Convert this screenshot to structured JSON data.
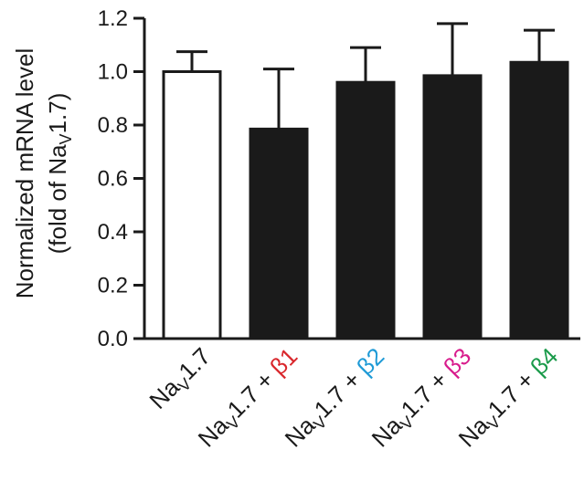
{
  "chart_data": {
    "type": "bar",
    "ylabel_line1": "Normalized mRNA level",
    "ylabel_line2": {
      "pre": "(fold of Na",
      "sub": "V",
      "post": "1.7)"
    },
    "ylim": [
      0,
      1.2
    ],
    "yticks": [
      "0.0",
      "0.2",
      "0.4",
      "0.6",
      "0.8",
      "1.0",
      "1.2"
    ],
    "grid": false,
    "legend": "none",
    "categories": [
      {
        "base": "Na",
        "sub": "V",
        "rest": "1.7",
        "suffix": "",
        "suffix_color": "#1a1a1a"
      },
      {
        "base": "Na",
        "sub": "V",
        "rest": "1.7 + ",
        "suffix": "β1",
        "suffix_color": "#d9262b"
      },
      {
        "base": "Na",
        "sub": "V",
        "rest": "1.7 + ",
        "suffix": "β2",
        "suffix_color": "#1e9ad6"
      },
      {
        "base": "Na",
        "sub": "V",
        "rest": "1.7 + ",
        "suffix": "β3",
        "suffix_color": "#d81b8c"
      },
      {
        "base": "Na",
        "sub": "V",
        "rest": "1.7 + ",
        "suffix": "β4",
        "suffix_color": "#1a9a4a"
      }
    ],
    "values": [
      1.0,
      0.785,
      0.96,
      0.985,
      1.035
    ],
    "error_upper": [
      0.075,
      0.225,
      0.13,
      0.195,
      0.12
    ],
    "bar_fills": [
      "#ffffff",
      "#1a1a1a",
      "#1a1a1a",
      "#1a1a1a",
      "#1a1a1a"
    ]
  }
}
